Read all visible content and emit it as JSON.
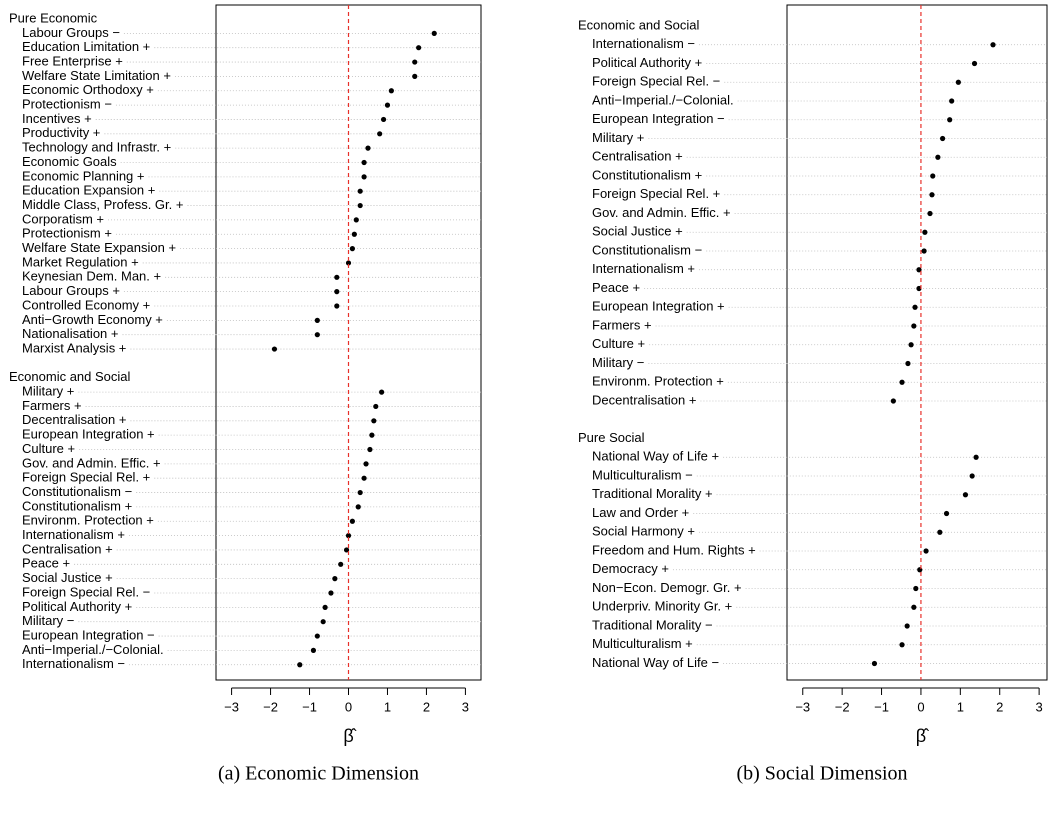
{
  "chart_data": [
    {
      "type": "dot",
      "caption": "(a)  Economic Dimension",
      "xlabel": "β̂",
      "xlim": [
        -3.4,
        3.4
      ],
      "xticks": [
        {
          "value": -3,
          "label": "−3"
        },
        {
          "value": -2,
          "label": "−2"
        },
        {
          "value": -1,
          "label": "−1"
        },
        0,
        1,
        2,
        3
      ],
      "refline": 0,
      "refline_color": "#e8302a",
      "color": "#000000",
      "groups": [
        {
          "name": "Pure Economic",
          "categories": [
            "Labour Groups −",
            "Education Limitation +",
            "Free Enterprise +",
            "Welfare State Limitation +",
            "Economic Orthodoxy +",
            "Protectionism −",
            "Incentives +",
            "Productivity +",
            "Technology and Infrastr. +",
            "Economic Goals",
            "Economic Planning +",
            "Education Expansion +",
            "Middle Class, Profess. Gr. +",
            "Corporatism +",
            "Protectionism +",
            "Welfare State Expansion +",
            "Market Regulation +",
            "Keynesian Dem. Man. +",
            "Labour Groups +",
            "Controlled Economy +",
            "Anti−Growth Economy +",
            "Nationalisation +",
            "Marxist Analysis +"
          ],
          "values": [
            2.2,
            1.8,
            1.7,
            1.7,
            1.1,
            1.0,
            0.9,
            0.8,
            0.5,
            0.4,
            0.4,
            0.3,
            0.3,
            0.2,
            0.15,
            0.1,
            0.0,
            -0.3,
            -0.3,
            -0.3,
            -0.8,
            -0.8,
            -1.9
          ]
        },
        {
          "name": "Economic and Social",
          "categories": [
            "Military +",
            "Farmers +",
            "Decentralisation +",
            "European Integration +",
            "Culture +",
            "Gov. and Admin. Effic. +",
            "Foreign Special Rel. +",
            "Constitutionalism −",
            "Constitutionalism +",
            "Environm. Protection +",
            "Internationalism +",
            "Centralisation +",
            "Peace +",
            "Social Justice +",
            "Foreign Special Rel. −",
            "Political Authority +",
            "Military −",
            "European Integration −",
            "Anti−Imperial./−Colonial.",
            "Internationalism −"
          ],
          "values": [
            0.85,
            0.7,
            0.65,
            0.6,
            0.55,
            0.45,
            0.4,
            0.3,
            0.25,
            0.1,
            0.0,
            -0.05,
            -0.2,
            -0.35,
            -0.45,
            -0.6,
            -0.65,
            -0.8,
            -0.9,
            -1.25
          ]
        }
      ]
    },
    {
      "type": "dot",
      "caption": "(b)  Social Dimension",
      "xlabel": "β̂",
      "xlim": [
        -3.4,
        3.2
      ],
      "xticks": [
        {
          "value": -3,
          "label": "−3"
        },
        {
          "value": -2,
          "label": "−2"
        },
        {
          "value": -1,
          "label": "−1"
        },
        0,
        1,
        2,
        3
      ],
      "refline": 0,
      "refline_color": "#e8302a",
      "color": "#000000",
      "groups": [
        {
          "name": "Economic and Social",
          "categories": [
            "Internationalism −",
            "Political Authority +",
            "Foreign Special Rel. −",
            "Anti−Imperial./−Colonial.",
            "European Integration −",
            "Military +",
            "Centralisation +",
            "Constitutionalism +",
            "Foreign Special Rel. +",
            "Gov. and Admin. Effic. +",
            "Social Justice +",
            "Constitutionalism −",
            "Internationalism +",
            "Peace +",
            "European Integration +",
            "Farmers +",
            "Culture +",
            "Military −",
            "Environm. Protection +",
            "Decentralisation +"
          ],
          "values": [
            1.83,
            1.36,
            0.95,
            0.78,
            0.73,
            0.55,
            0.43,
            0.3,
            0.28,
            0.23,
            0.1,
            0.08,
            -0.05,
            -0.05,
            -0.15,
            -0.18,
            -0.25,
            -0.33,
            -0.48,
            -0.7
          ]
        },
        {
          "name": "Pure Social",
          "categories": [
            "National Way of Life +",
            "Multiculturalism −",
            "Traditional Morality +",
            "Law and Order +",
            "Social Harmony +",
            "Freedom and Hum. Rights +",
            "Democracy +",
            "Non−Econ. Demogr. Gr. +",
            "Underpriv. Minority Gr. +",
            "Traditional Morality −",
            "Multiculturalism +",
            "National Way of Life −"
          ],
          "values": [
            1.4,
            1.3,
            1.13,
            0.65,
            0.48,
            0.13,
            -0.03,
            -0.13,
            -0.18,
            -0.35,
            -0.48,
            -1.18
          ]
        }
      ]
    }
  ]
}
